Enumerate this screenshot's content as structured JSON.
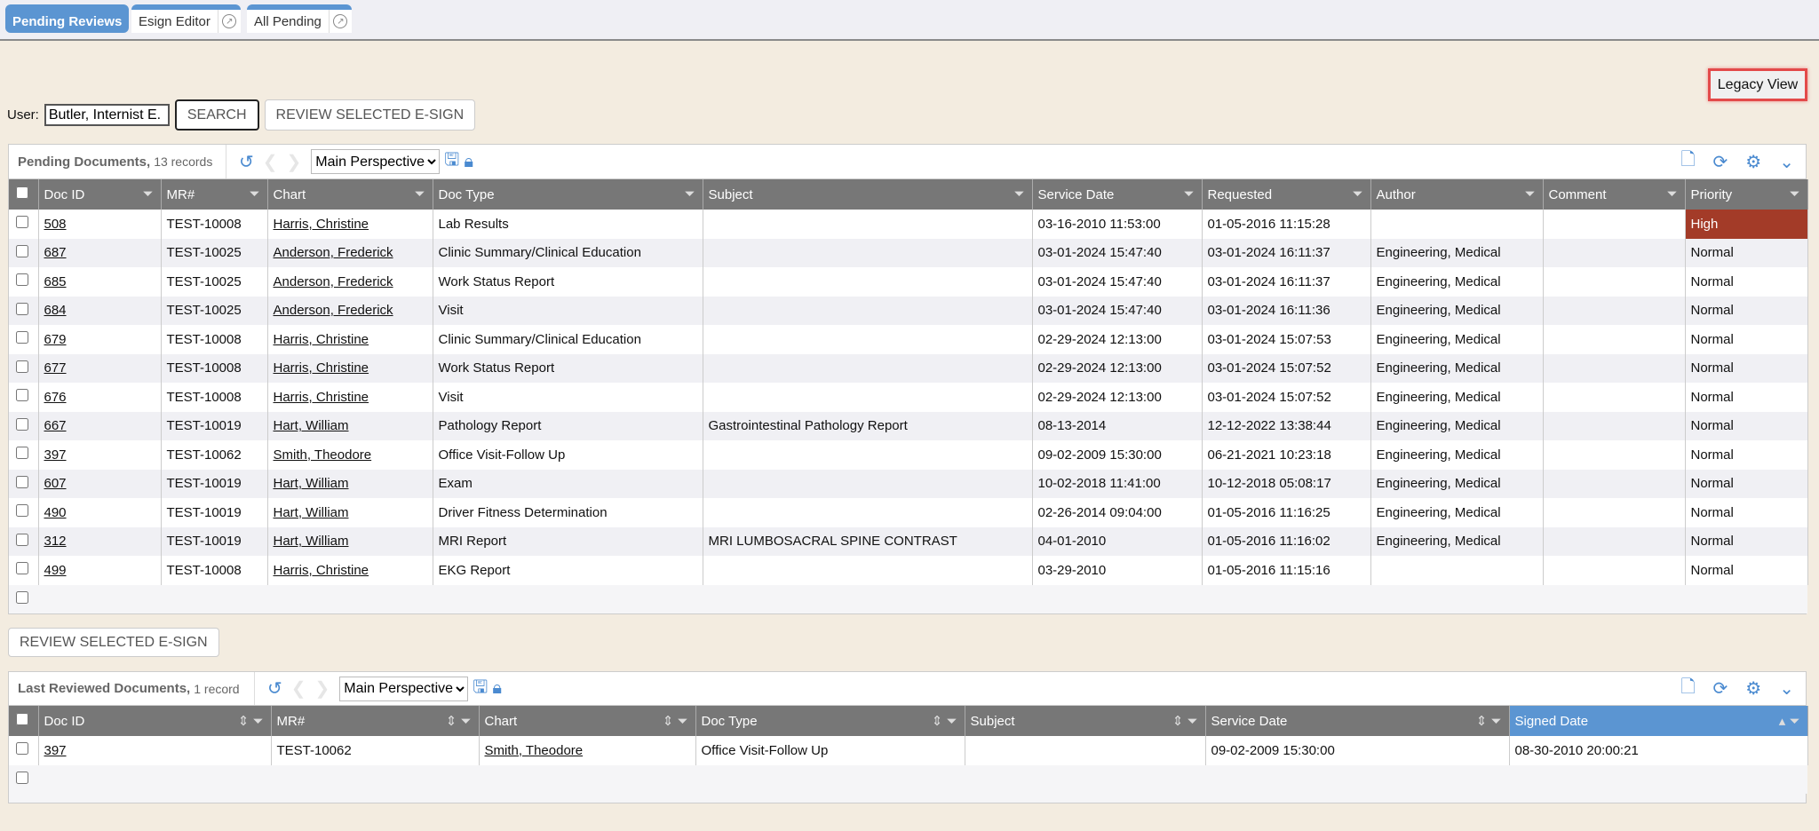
{
  "tabs": [
    {
      "label": "Pending Reviews",
      "active": true
    },
    {
      "label": "Esign Editor"
    },
    {
      "label": "All Pending"
    }
  ],
  "legacy_view": "Legacy View",
  "user": {
    "label": "User:",
    "value": "Butler, Internist E."
  },
  "search_button": "SEARCH",
  "review_selected": "REVIEW SELECTED E-SIGN",
  "colors": {
    "background": "#f3ece0",
    "accent": "#5b95d2",
    "header": "#777777",
    "high_priority": "#a33b28"
  },
  "pending": {
    "title": "Pending Documents,",
    "count": "13 records",
    "perspective": "Main Perspective",
    "columns": [
      "Doc ID",
      "MR#",
      "Chart",
      "Doc Type",
      "Subject",
      "Service Date",
      "Requested",
      "Author",
      "Comment",
      "Priority"
    ],
    "rows": [
      [
        "508",
        "TEST-10008",
        "Harris, Christine",
        "Lab Results",
        "",
        "03-16-2010 11:53:00",
        "01-05-2016 11:15:28",
        "",
        "",
        "High"
      ],
      [
        "687",
        "TEST-10025",
        "Anderson, Frederick",
        "Clinic Summary/Clinical Education",
        "",
        "03-01-2024 15:47:40",
        "03-01-2024 16:11:37",
        "Engineering, Medical",
        "",
        "Normal"
      ],
      [
        "685",
        "TEST-10025",
        "Anderson, Frederick",
        "Work Status Report",
        "",
        "03-01-2024 15:47:40",
        "03-01-2024 16:11:37",
        "Engineering, Medical",
        "",
        "Normal"
      ],
      [
        "684",
        "TEST-10025",
        "Anderson, Frederick",
        "Visit",
        "",
        "03-01-2024 15:47:40",
        "03-01-2024 16:11:36",
        "Engineering, Medical",
        "",
        "Normal"
      ],
      [
        "679",
        "TEST-10008",
        "Harris, Christine",
        "Clinic Summary/Clinical Education",
        "",
        "02-29-2024 12:13:00",
        "03-01-2024 15:07:53",
        "Engineering, Medical",
        "",
        "Normal"
      ],
      [
        "677",
        "TEST-10008",
        "Harris, Christine",
        "Work Status Report",
        "",
        "02-29-2024 12:13:00",
        "03-01-2024 15:07:52",
        "Engineering, Medical",
        "",
        "Normal"
      ],
      [
        "676",
        "TEST-10008",
        "Harris, Christine",
        "Visit",
        "",
        "02-29-2024 12:13:00",
        "03-01-2024 15:07:52",
        "Engineering, Medical",
        "",
        "Normal"
      ],
      [
        "667",
        "TEST-10019",
        "Hart, William",
        "Pathology Report",
        "Gastrointestinal Pathology Report",
        "08-13-2014",
        "12-12-2022 13:38:44",
        "Engineering, Medical",
        "",
        "Normal"
      ],
      [
        "397",
        "TEST-10062",
        "Smith, Theodore",
        "Office Visit-Follow Up",
        "",
        "09-02-2009 15:30:00",
        "06-21-2021 10:23:18",
        "Engineering, Medical",
        "",
        "Normal"
      ],
      [
        "607",
        "TEST-10019",
        "Hart, William",
        "Exam",
        "",
        "10-02-2018 11:41:00",
        "10-12-2018 05:08:17",
        "Engineering, Medical",
        "",
        "Normal"
      ],
      [
        "490",
        "TEST-10019",
        "Hart, William",
        "Driver Fitness Determination",
        "",
        "02-26-2014 09:04:00",
        "01-05-2016 11:16:25",
        "Engineering, Medical",
        "",
        "Normal"
      ],
      [
        "312",
        "TEST-10019",
        "Hart, William",
        "MRI Report",
        "MRI LUMBOSACRAL SPINE CONTRAST",
        "04-01-2010",
        "01-05-2016 11:16:02",
        "Engineering, Medical",
        "",
        "Normal"
      ],
      [
        "499",
        "TEST-10008",
        "Harris, Christine",
        "EKG Report",
        "",
        "03-29-2010",
        "01-05-2016 11:15:16",
        "",
        "",
        "Normal"
      ]
    ]
  },
  "reviewed": {
    "title": "Last Reviewed Documents,",
    "count": "1 record",
    "perspective": "Main Perspective",
    "columns": [
      "Doc ID",
      "MR#",
      "Chart",
      "Doc Type",
      "Subject",
      "Service Date",
      "Signed Date"
    ],
    "sorted_column": "Signed Date",
    "rows": [
      [
        "397",
        "TEST-10062",
        "Smith, Theodore",
        "Office Visit-Follow Up",
        "",
        "09-02-2009 15:30:00",
        "08-30-2010 20:00:21"
      ]
    ]
  }
}
